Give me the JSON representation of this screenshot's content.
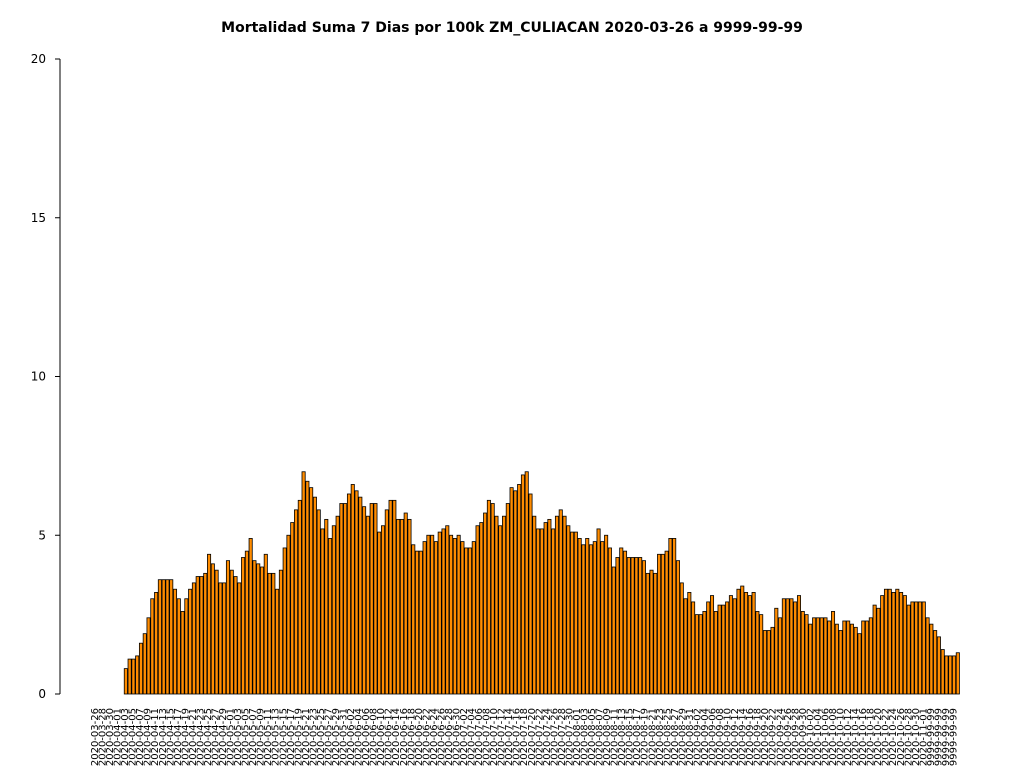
{
  "chart_data": {
    "type": "bar",
    "title": "Mortalidad Suma 7 Dias por 100k ZM_CULIACAN 2020-03-26 a 9999-99-99",
    "xlabel": "",
    "ylabel": "",
    "ylim": [
      0,
      20
    ],
    "yticks": [
      0,
      5,
      10,
      15,
      20
    ],
    "start_date": "2020-03-26",
    "end_label": "9999-99-99",
    "bar_color": "#ff8c00",
    "edge_color": "#000000",
    "values": [
      0,
      0,
      0,
      0,
      0,
      0,
      0,
      0,
      0.8,
      1.1,
      1.1,
      1.2,
      1.6,
      1.9,
      2.4,
      3.0,
      3.2,
      3.6,
      3.6,
      3.6,
      3.6,
      3.3,
      3.0,
      2.6,
      3.0,
      3.3,
      3.5,
      3.7,
      3.7,
      3.8,
      4.4,
      4.1,
      3.9,
      3.5,
      3.5,
      4.2,
      3.9,
      3.7,
      3.5,
      4.3,
      4.5,
      4.9,
      4.2,
      4.1,
      4.0,
      4.4,
      3.8,
      3.8,
      3.3,
      3.9,
      4.6,
      5.0,
      5.4,
      5.8,
      6.1,
      7.0,
      6.7,
      6.5,
      6.2,
      5.8,
      5.2,
      5.5,
      4.9,
      5.3,
      5.6,
      6.0,
      6.0,
      6.3,
      6.6,
      6.4,
      6.2,
      5.9,
      5.6,
      6.0,
      6.0,
      5.1,
      5.3,
      5.8,
      6.1,
      6.1,
      5.5,
      5.5,
      5.7,
      5.5,
      4.7,
      4.5,
      4.5,
      4.8,
      5.0,
      5.0,
      4.8,
      5.1,
      5.2,
      5.3,
      5.0,
      4.9,
      5.0,
      4.8,
      4.6,
      4.6,
      4.8,
      5.3,
      5.4,
      5.7,
      6.1,
      6.0,
      5.6,
      5.3,
      5.6,
      6.0,
      6.5,
      6.4,
      6.6,
      6.9,
      7.0,
      6.3,
      5.6,
      5.2,
      5.2,
      5.4,
      5.5,
      5.2,
      5.6,
      5.8,
      5.6,
      5.3,
      5.1,
      5.1,
      4.9,
      4.7,
      4.9,
      4.7,
      4.8,
      5.2,
      4.8,
      5.0,
      4.6,
      4.0,
      4.3,
      4.6,
      4.5,
      4.3,
      4.3,
      4.3,
      4.3,
      4.2,
      3.8,
      3.9,
      3.8,
      4.4,
      4.4,
      4.5,
      4.9,
      4.9,
      4.2,
      3.5,
      3.0,
      3.2,
      2.9,
      2.5,
      2.5,
      2.6,
      2.9,
      3.1,
      2.6,
      2.8,
      2.8,
      2.9,
      3.1,
      3.0,
      3.3,
      3.4,
      3.2,
      3.1,
      3.2,
      2.6,
      2.5,
      2.0,
      2.0,
      2.1,
      2.7,
      2.4,
      3.0,
      3.0,
      3.0,
      2.9,
      3.1,
      2.6,
      2.5,
      2.2,
      2.4,
      2.4,
      2.4,
      2.4,
      2.3,
      2.6,
      2.2,
      2.0,
      2.3,
      2.3,
      2.2,
      2.1,
      1.9,
      2.3,
      2.3,
      2.4,
      2.8,
      2.7,
      3.1,
      3.3,
      3.3,
      3.2,
      3.3,
      3.2,
      3.1,
      2.8,
      2.9,
      2.9,
      2.9,
      2.9,
      2.4,
      2.2,
      2.0,
      1.8,
      1.4,
      1.2,
      1.2,
      1.2,
      1.3
    ]
  }
}
